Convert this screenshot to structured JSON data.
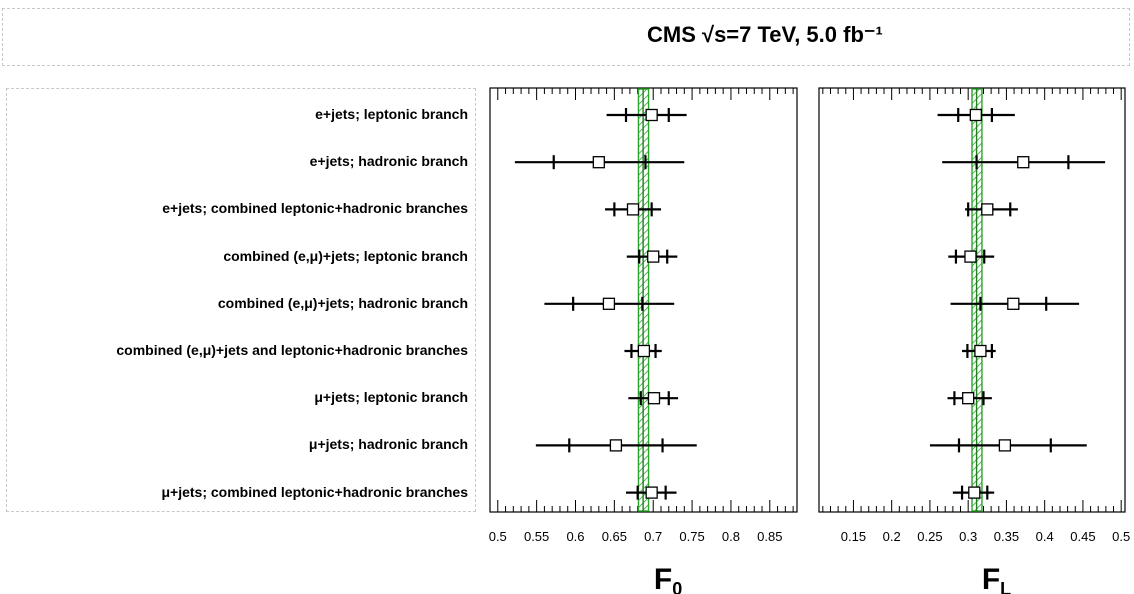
{
  "title": "CMS  √s=7 TeV, 5.0 fb⁻¹",
  "rows": [
    "e+jets; leptonic branch",
    "e+jets; hadronic branch",
    "e+jets; combined leptonic+hadronic branches",
    "combined (e,μ)+jets; leptonic branch",
    "combined (e,μ)+jets; hadronic branch",
    "combined (e,μ)+jets and leptonic+hadronic branches",
    "μ+jets; leptonic branch",
    "μ+jets; hadronic branch",
    "μ+jets; combined leptonic+hadronic branches"
  ],
  "chart_data": [
    {
      "type": "scatter",
      "id": "F0",
      "xlabel_main": "F",
      "xlabel_sub": "0",
      "xlim": [
        0.49,
        0.885
      ],
      "ticks": [
        0.5,
        0.55,
        0.6,
        0.65,
        0.7,
        0.75,
        0.8,
        0.85
      ],
      "tick_labels": [
        "0.5",
        "0.55",
        "0.6",
        "0.65",
        "0.7",
        "0.75",
        "0.8",
        "0.85"
      ],
      "prediction": {
        "low": 0.681,
        "high": 0.694,
        "center": 0.687
      },
      "values": [
        0.698,
        0.63,
        0.674,
        0.7,
        0.643,
        0.688,
        0.701,
        0.652,
        0.698
      ],
      "stat_err": [
        [
          0.665,
          0.72
        ],
        [
          0.572,
          0.69
        ],
        [
          0.65,
          0.698
        ],
        [
          0.682,
          0.718
        ],
        [
          0.597,
          0.686
        ],
        [
          0.672,
          0.703
        ],
        [
          0.684,
          0.72
        ],
        [
          0.592,
          0.712
        ],
        [
          0.68,
          0.716
        ]
      ],
      "total_err": [
        [
          0.64,
          0.743
        ],
        [
          0.522,
          0.74
        ],
        [
          0.638,
          0.71
        ],
        [
          0.666,
          0.731
        ],
        [
          0.56,
          0.727
        ],
        [
          0.663,
          0.711
        ],
        [
          0.668,
          0.732
        ],
        [
          0.549,
          0.756
        ],
        [
          0.665,
          0.73
        ]
      ]
    },
    {
      "type": "scatter",
      "id": "FL",
      "xlabel_main": "F",
      "xlabel_sub": "L",
      "xlim": [
        0.105,
        0.505
      ],
      "ticks": [
        0.15,
        0.2,
        0.25,
        0.3,
        0.35,
        0.4,
        0.45,
        0.5
      ],
      "tick_labels": [
        "0.15",
        "0.2",
        "0.25",
        "0.3",
        "0.35",
        "0.4",
        "0.45",
        "0.5"
      ],
      "prediction": {
        "low": 0.305,
        "high": 0.318,
        "center": 0.311
      },
      "values": [
        0.31,
        0.372,
        0.325,
        0.303,
        0.359,
        0.316,
        0.3,
        0.348,
        0.308
      ],
      "stat_err": [
        [
          0.287,
          0.331
        ],
        [
          0.311,
          0.431
        ],
        [
          0.3,
          0.355
        ],
        [
          0.284,
          0.321
        ],
        [
          0.316,
          0.402
        ],
        [
          0.299,
          0.331
        ],
        [
          0.282,
          0.32
        ],
        [
          0.288,
          0.408
        ],
        [
          0.292,
          0.325
        ]
      ],
      "total_err": [
        [
          0.26,
          0.361
        ],
        [
          0.266,
          0.479
        ],
        [
          0.296,
          0.365
        ],
        [
          0.274,
          0.334
        ],
        [
          0.277,
          0.445
        ],
        [
          0.292,
          0.336
        ],
        [
          0.273,
          0.331
        ],
        [
          0.25,
          0.455
        ],
        [
          0.28,
          0.334
        ]
      ]
    }
  ]
}
